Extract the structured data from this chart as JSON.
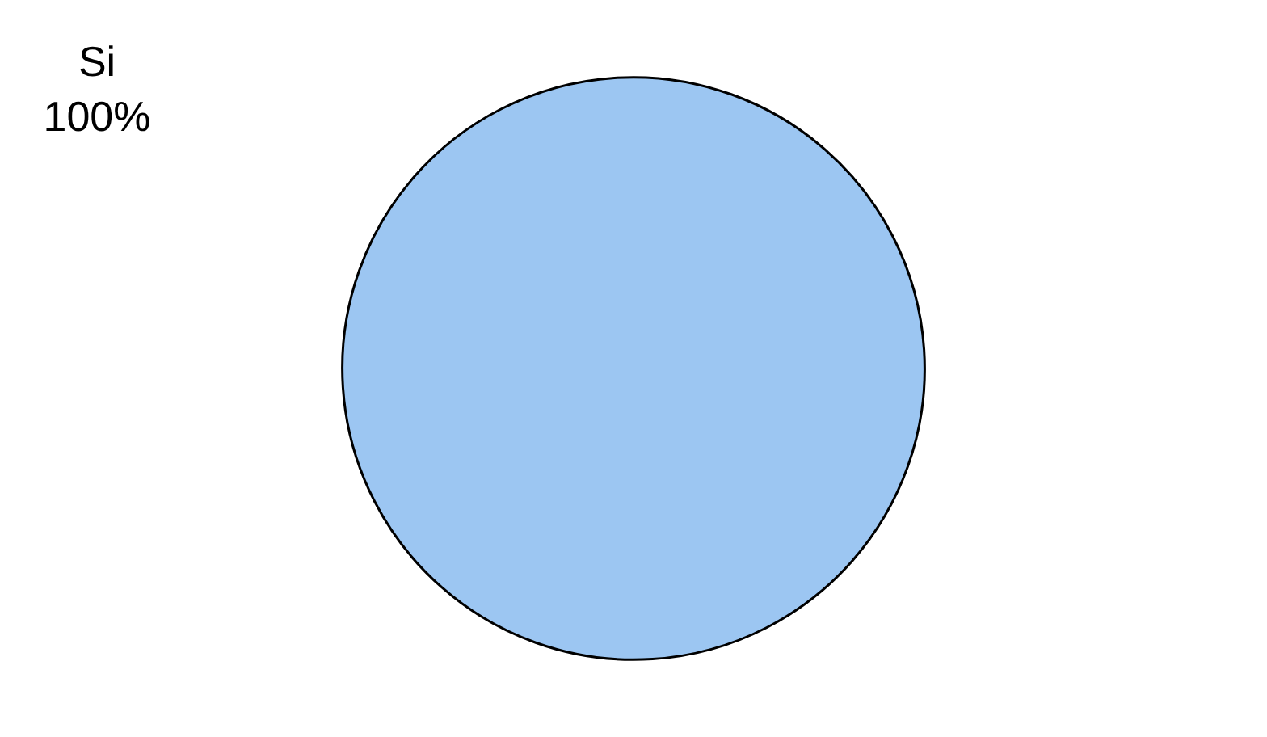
{
  "chart_data": {
    "type": "pie",
    "categories": [
      "Si"
    ],
    "values": [
      100
    ],
    "colors": [
      "#9cc6f2"
    ],
    "value_labels": [
      "100%"
    ],
    "legend": false
  }
}
